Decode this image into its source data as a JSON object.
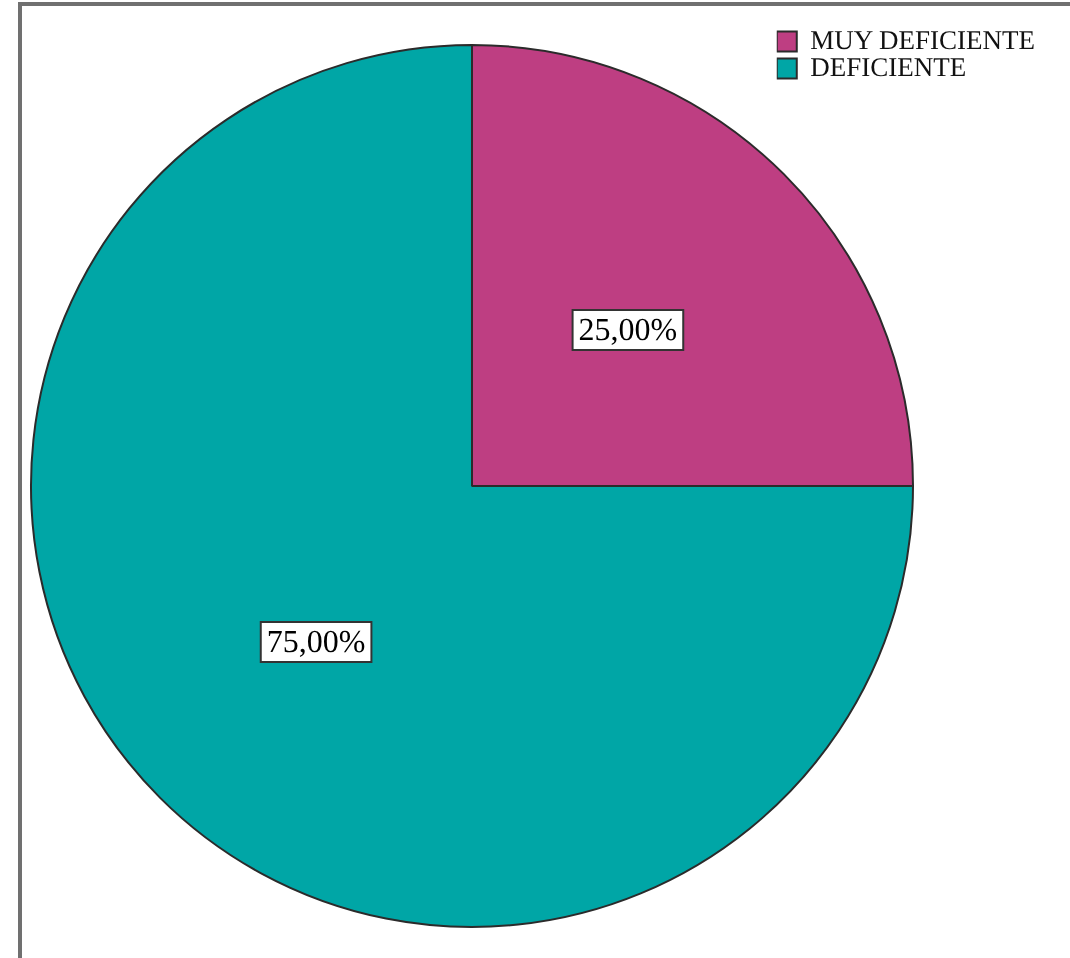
{
  "chart_data": {
    "type": "pie",
    "categories": [
      "MUY DEFICIENTE",
      "DEFICIENTE"
    ],
    "values": [
      25,
      75
    ],
    "colors": [
      "#be3e82",
      "#00a6a6"
    ],
    "value_labels": [
      "25,00%",
      "75,00%"
    ],
    "legend": "top right"
  }
}
